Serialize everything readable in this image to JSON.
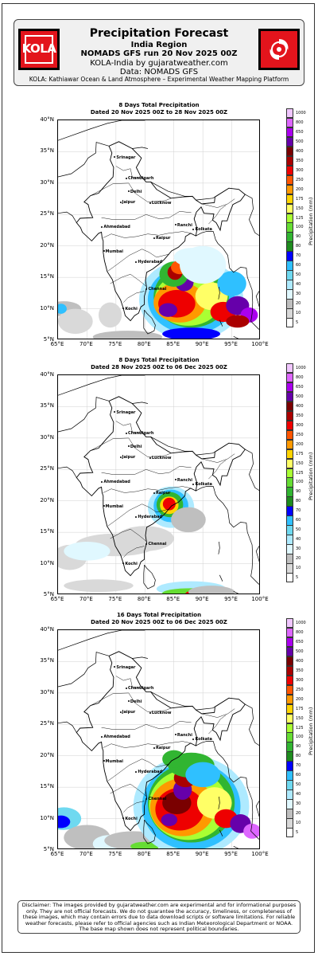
{
  "header": {
    "title": "Precipitation Forecast",
    "region": "India Region",
    "run": "NOMADS GFS run 20 Nov 2025 00Z",
    "byline": "KOLA-India by gujaratweather.com",
    "data_source": "Data: NOMADS GFS",
    "footer": "KOLA: Kathiawar Ocean & Land Atmosphere – Experimental Weather Mapping Platform",
    "logo_left_text": "KOLA",
    "logo_right_icon": "cyclone-icon",
    "logo_color": "#e3141c"
  },
  "panels": [
    {
      "title1": "8 Days Total Precipitation",
      "title2": "Dated 20 Nov 2025 00Z to 28 Nov 2025 00Z"
    },
    {
      "title1": "8 Days Total Precipitation",
      "title2": "Dated 28 Nov 2025 00Z to 06 Dec 2025 00Z"
    },
    {
      "title1": "16 Days Total Precipitation",
      "title2": "Dated 20 Nov 2025 00Z to 06 Dec 2025 00Z"
    }
  ],
  "axes": {
    "lat_labels": [
      "40°N",
      "35°N",
      "30°N",
      "25°N",
      "20°N",
      "15°N",
      "10°N",
      "5°N"
    ],
    "lon_labels": [
      "65°E",
      "70°E",
      "75°E",
      "80°E",
      "85°E",
      "90°E",
      "95°E",
      "100°E"
    ]
  },
  "cities": [
    "Srinagar",
    "Chandigarh",
    "Delhi",
    "Jaipur",
    "Lucknow",
    "Ahmedabad",
    "Ranchi",
    "Kolkata",
    "Raipur",
    "Mumbai",
    "Hyderabad",
    "Chennai",
    "Kochi"
  ],
  "colorbar": {
    "unit_label": "Precipitation (mm)",
    "levels": [
      "5",
      "10",
      "20",
      "30",
      "40",
      "50",
      "60",
      "70",
      "80",
      "90",
      "100",
      "125",
      "150",
      "175",
      "200",
      "250",
      "300",
      "350",
      "400",
      "500",
      "650",
      "800",
      "1000"
    ],
    "colors": [
      "#ffffff",
      "#d9d9d9",
      "#bfbfbf",
      "#e0f8ff",
      "#aeeaff",
      "#6fd9f0",
      "#2fc0ff",
      "#0000ff",
      "#1e8c1e",
      "#31b531",
      "#66dd33",
      "#aaff33",
      "#ffff66",
      "#ffd400",
      "#ff9900",
      "#ff5500",
      "#ee0000",
      "#aa0000",
      "#7a0000",
      "#6600aa",
      "#aa00ee",
      "#dd66ff",
      "#f0c6ff"
    ]
  },
  "disclaimer": "Disclaimer: The images provided by gujaratweather.com are experimental and for informational purposes only. They are not official forecasts. We do not guarantee the accuracy, timeliness, or completeness of these images, which may contain errors due to data download scripts or software limitations. For reliable weather forecasts, please refer to official agencies such as Indian Meteorological Department or NOAA. The base map shown does not represent political boundaries."
}
